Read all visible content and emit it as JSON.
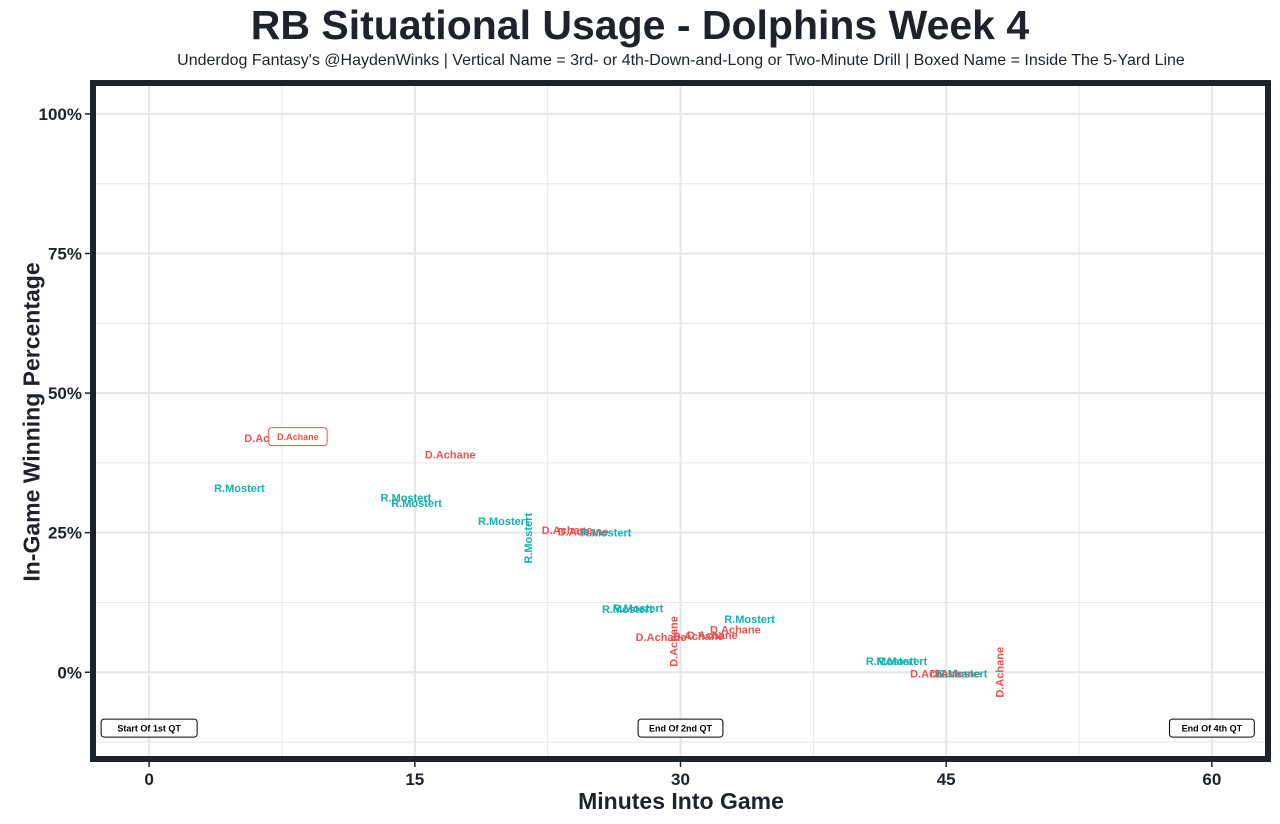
{
  "chart_data": {
    "type": "scatter",
    "title": "RB Situational Usage - Dolphins Week 4",
    "subtitle": "Underdog Fantasy's @HaydenWinks | Vertical Name = 3rd- or 4th-Down-and-Long or Two-Minute Drill | Boxed Name = Inside The 5-Yard Line",
    "xlabel": "Minutes Into Game",
    "ylabel": "In-Game Winning Percentage",
    "xlim": [
      -3,
      63
    ],
    "ylim": [
      -15,
      105
    ],
    "x_ticks": [
      0,
      15,
      30,
      45,
      60
    ],
    "x_tick_labels": [
      "0",
      "15",
      "30",
      "45",
      "60"
    ],
    "y_ticks": [
      0,
      25,
      50,
      75,
      100
    ],
    "y_tick_labels": [
      "0%",
      "25%",
      "50%",
      "75%",
      "100%"
    ],
    "grid": true,
    "colors": {
      "D.Achane": "#e8534f",
      "R.Mostert": "#15b0b0",
      "frame": "#1d222b",
      "grid": "#e6e6e6"
    },
    "series": [
      {
        "name": "D.Achane",
        "points": [
          {
            "x": 6.8,
            "y": 42,
            "label": "D.Achane",
            "style": "normal"
          },
          {
            "x": 8.4,
            "y": 42.2,
            "label": "D.Achane",
            "style": "boxed"
          },
          {
            "x": 17.0,
            "y": 39,
            "label": "D.Achane",
            "style": "normal"
          },
          {
            "x": 23.6,
            "y": 25.5,
            "label": "D.Achane",
            "style": "normal"
          },
          {
            "x": 24.5,
            "y": 25.2,
            "label": "D.Achane",
            "style": "normal"
          },
          {
            "x": 28.9,
            "y": 6.3,
            "label": "D.Achane",
            "style": "normal"
          },
          {
            "x": 29.6,
            "y": 5.5,
            "label": "D.Achane",
            "style": "vertical"
          },
          {
            "x": 31.0,
            "y": 6.5,
            "label": "D.Achane",
            "style": "normal"
          },
          {
            "x": 31.8,
            "y": 6.7,
            "label": "D.Achane",
            "style": "normal"
          },
          {
            "x": 33.1,
            "y": 7.7,
            "label": "D.Achane",
            "style": "normal"
          },
          {
            "x": 44.4,
            "y": -0.2,
            "label": "D.Achane",
            "style": "normal"
          },
          {
            "x": 45.5,
            "y": -0.2,
            "label": "D.Achane",
            "style": "normal"
          },
          {
            "x": 48.0,
            "y": 0,
            "label": "D.Achane",
            "style": "vertical"
          }
        ]
      },
      {
        "name": "R.Mostert",
        "points": [
          {
            "x": 5.1,
            "y": 33,
            "label": "R.Mostert",
            "style": "normal"
          },
          {
            "x": 14.5,
            "y": 31.3,
            "label": "R.Mostert",
            "style": "normal"
          },
          {
            "x": 15.1,
            "y": 30.3,
            "label": "R.Mostert",
            "style": "normal"
          },
          {
            "x": 20.0,
            "y": 27.1,
            "label": "R.Mostert",
            "style": "normal"
          },
          {
            "x": 21.4,
            "y": 24,
            "label": "R.Mostert",
            "style": "vertical"
          },
          {
            "x": 25.8,
            "y": 25,
            "label": "R.Mostert",
            "style": "normal"
          },
          {
            "x": 27.0,
            "y": 11.3,
            "label": "R.Mostert",
            "style": "normal"
          },
          {
            "x": 27.6,
            "y": 11.5,
            "label": "R.Mostert",
            "style": "normal"
          },
          {
            "x": 33.9,
            "y": 9.5,
            "label": "R.Mostert",
            "style": "normal"
          },
          {
            "x": 41.9,
            "y": 2,
            "label": "R.Mostert",
            "style": "normal"
          },
          {
            "x": 42.5,
            "y": 2,
            "label": "R.Mostert",
            "style": "normal"
          },
          {
            "x": 45.9,
            "y": -0.2,
            "label": "R.Mostert",
            "style": "normal"
          }
        ]
      }
    ],
    "annotations": [
      {
        "x": 0,
        "y": -10,
        "text": "Start Of 1st QT"
      },
      {
        "x": 30,
        "y": -10,
        "text": "End Of 2nd QT"
      },
      {
        "x": 60,
        "y": -10,
        "text": "End Of 4th QT"
      }
    ]
  }
}
